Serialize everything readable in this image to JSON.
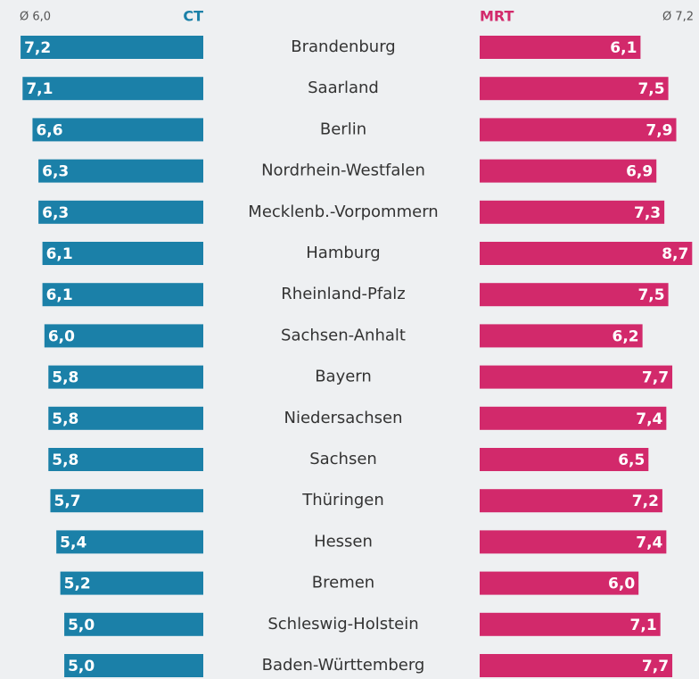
{
  "chart_data": {
    "type": "butterfly-bar",
    "annotations": {
      "left_average": "Ø 6,0",
      "right_average": "Ø 7,2"
    },
    "categories": [
      "Brandenburg",
      "Saarland",
      "Berlin",
      "Nordrhein-Westfalen",
      "Mecklenb.-Vorpommern",
      "Hamburg",
      "Rheinland-Pfalz",
      "Sachsen-Anhalt",
      "Bayern",
      "Niedersachsen",
      "Sachsen",
      "Thüringen",
      "Hessen",
      "Bremen",
      "Schleswig-Holstein",
      "Baden-Württemberg"
    ],
    "series": [
      {
        "name": "CT",
        "color": "#1b80a8",
        "values": [
          7.2,
          7.1,
          6.6,
          6.3,
          6.3,
          6.1,
          6.1,
          6.0,
          5.8,
          5.8,
          5.8,
          5.7,
          5.4,
          5.2,
          5.0,
          5.0
        ],
        "value_labels": [
          "7,2",
          "7,1",
          "6,6",
          "6,3",
          "6,3",
          "6,1",
          "6,1",
          "6,0",
          "5,8",
          "5,8",
          "5,8",
          "5,7",
          "5,4",
          "5,2",
          "5,0",
          "5,0"
        ]
      },
      {
        "name": "MRT",
        "color": "#d2296b",
        "values": [
          6.1,
          7.5,
          7.9,
          6.9,
          7.3,
          8.7,
          7.5,
          6.2,
          7.7,
          7.4,
          6.5,
          7.2,
          7.4,
          6.0,
          7.1,
          7.7
        ],
        "value_labels": [
          "6,1",
          "7,5",
          "7,9",
          "6,9",
          "7,3",
          "8,7",
          "7,5",
          "6,2",
          "7,7",
          "7,4",
          "6,5",
          "7,2",
          "7,4",
          "6,0",
          "7,1",
          "7,7"
        ]
      }
    ],
    "xlim": [
      -2,
      9
    ]
  }
}
